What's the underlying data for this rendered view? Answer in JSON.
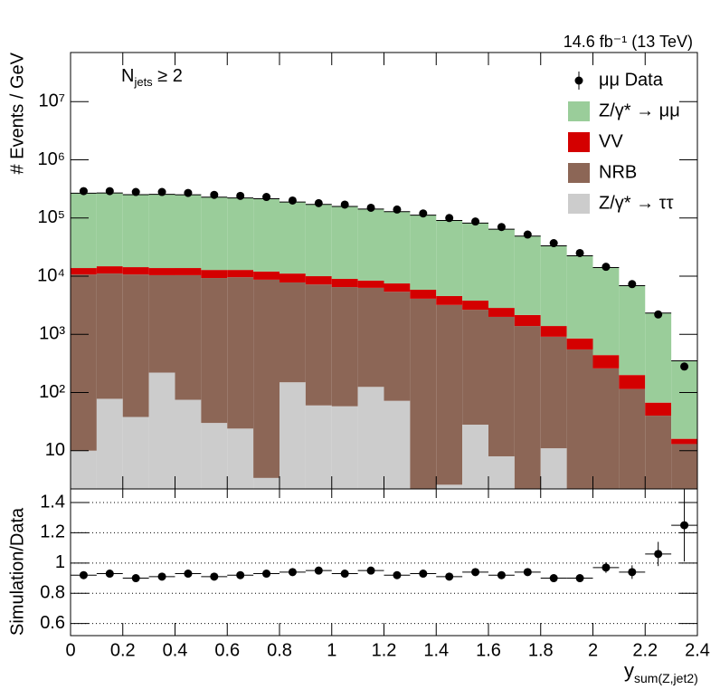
{
  "chart_data": [
    {
      "type": "stacked-histogram",
      "annotations": {
        "lumi": "14.6 fb⁻¹ (13 TeV)",
        "njets": [
          "N",
          "jets",
          " ≥ 2"
        ]
      },
      "y_label": "# Events / GeV",
      "bins": [
        0,
        0.1,
        0.2,
        0.3,
        0.4,
        0.5,
        0.6,
        0.7,
        0.8,
        0.9,
        1,
        1.1,
        1.2,
        1.3,
        1.4,
        1.5,
        1.6,
        1.7,
        1.8,
        1.9,
        2,
        2.1,
        2.2,
        2.3,
        2.4
      ],
      "xlim": [
        0,
        2.4
      ],
      "ylim": [
        2.2,
        70000000
      ],
      "log_y": true,
      "yticks": [
        10,
        {
          "value": 100,
          "label": "10²"
        },
        {
          "value": 1000,
          "label": "10³"
        },
        {
          "value": 10000,
          "label": "10⁴"
        },
        {
          "value": 100000,
          "label": "10⁵"
        },
        {
          "value": 1000000,
          "label": "10⁶"
        },
        {
          "value": 10000000,
          "label": "10⁷"
        }
      ],
      "legend": "top-right",
      "data": {
        "name": "μμ Data",
        "color": "#000000",
        "values": [
          290000,
          290000,
          280000,
          280000,
          270000,
          250000,
          240000,
          230000,
          200000,
          180000,
          170000,
          150000,
          140000,
          120000,
          100000,
          87000,
          70000,
          52000,
          37000,
          25000,
          14500,
          7300,
          2200,
          280
        ]
      },
      "series": [
        {
          "name": "Z/γ* → μμ",
          "color": "#9acd9a",
          "values": [
            253000,
            255000,
            238000,
            241000,
            237000,
            215000,
            208000,
            202000,
            177000,
            161000,
            149000,
            134000,
            121000,
            106000,
            86000,
            78000,
            61500,
            46700,
            31900,
            21600,
            13600,
            6660,
            2260,
            334
          ]
        },
        {
          "name": "VV",
          "color": "#d40000",
          "values": [
            3100,
            3700,
            3600,
            3400,
            3400,
            3500,
            3200,
            3300,
            3300,
            2800,
            2500,
            2100,
            2100,
            1750,
            1350,
            1150,
            850,
            760,
            480,
            300,
            180,
            85,
            27,
            3
          ]
        },
        {
          "name": "NRB",
          "color": "#8c6656",
          "values": [
            10690,
            11030,
            10660,
            10180,
            10330,
            9270,
            9580,
            8700,
            7650,
            7140,
            6440,
            6180,
            5330,
            4100,
            3200,
            2620,
            1990,
            1390,
            900,
            550,
            260,
            115,
            40,
            13
          ]
        },
        {
          "name": "Z/γ* → ττ",
          "color": "#cccccc",
          "values": [
            10,
            78,
            38,
            220,
            75,
            30,
            24,
            3.4,
            150,
            60,
            58,
            125,
            72,
            0,
            2.6,
            28,
            8,
            0,
            11,
            0,
            0,
            0,
            0,
            0
          ]
        }
      ]
    },
    {
      "type": "errorbar",
      "y_label": "Simulation/Data",
      "x_label": [
        "y",
        "sum(Z,jet2)"
      ],
      "x": [
        0.05,
        0.15,
        0.25,
        0.35,
        0.45,
        0.55,
        0.65,
        0.75,
        0.85,
        0.95,
        1.05,
        1.15,
        1.25,
        1.35,
        1.45,
        1.55,
        1.65,
        1.75,
        1.85,
        1.95,
        2.05,
        2.15,
        2.25,
        2.35
      ],
      "values": [
        0.92,
        0.93,
        0.9,
        0.91,
        0.93,
        0.91,
        0.92,
        0.93,
        0.94,
        0.95,
        0.93,
        0.95,
        0.92,
        0.93,
        0.91,
        0.94,
        0.92,
        0.94,
        0.9,
        0.9,
        0.97,
        0.94,
        1.06,
        1.25
      ],
      "errors": [
        0.01,
        0.01,
        0.01,
        0.01,
        0.01,
        0.01,
        0.01,
        0.01,
        0.01,
        0.01,
        0.01,
        0.01,
        0.01,
        0.01,
        0.01,
        0.01,
        0.015,
        0.015,
        0.02,
        0.025,
        0.035,
        0.045,
        0.08,
        0.24
      ],
      "color": "#000000",
      "xlim": [
        0,
        2.4
      ],
      "xticks": [
        0,
        0.2,
        0.4,
        0.6,
        0.8,
        1,
        1.2,
        1.4,
        1.6,
        1.8,
        2,
        2.2,
        2.4
      ],
      "ylim": [
        0.52,
        1.49
      ],
      "yticks": [
        0.6,
        0.8,
        1,
        1.2,
        1.4
      ],
      "grid": true
    }
  ]
}
